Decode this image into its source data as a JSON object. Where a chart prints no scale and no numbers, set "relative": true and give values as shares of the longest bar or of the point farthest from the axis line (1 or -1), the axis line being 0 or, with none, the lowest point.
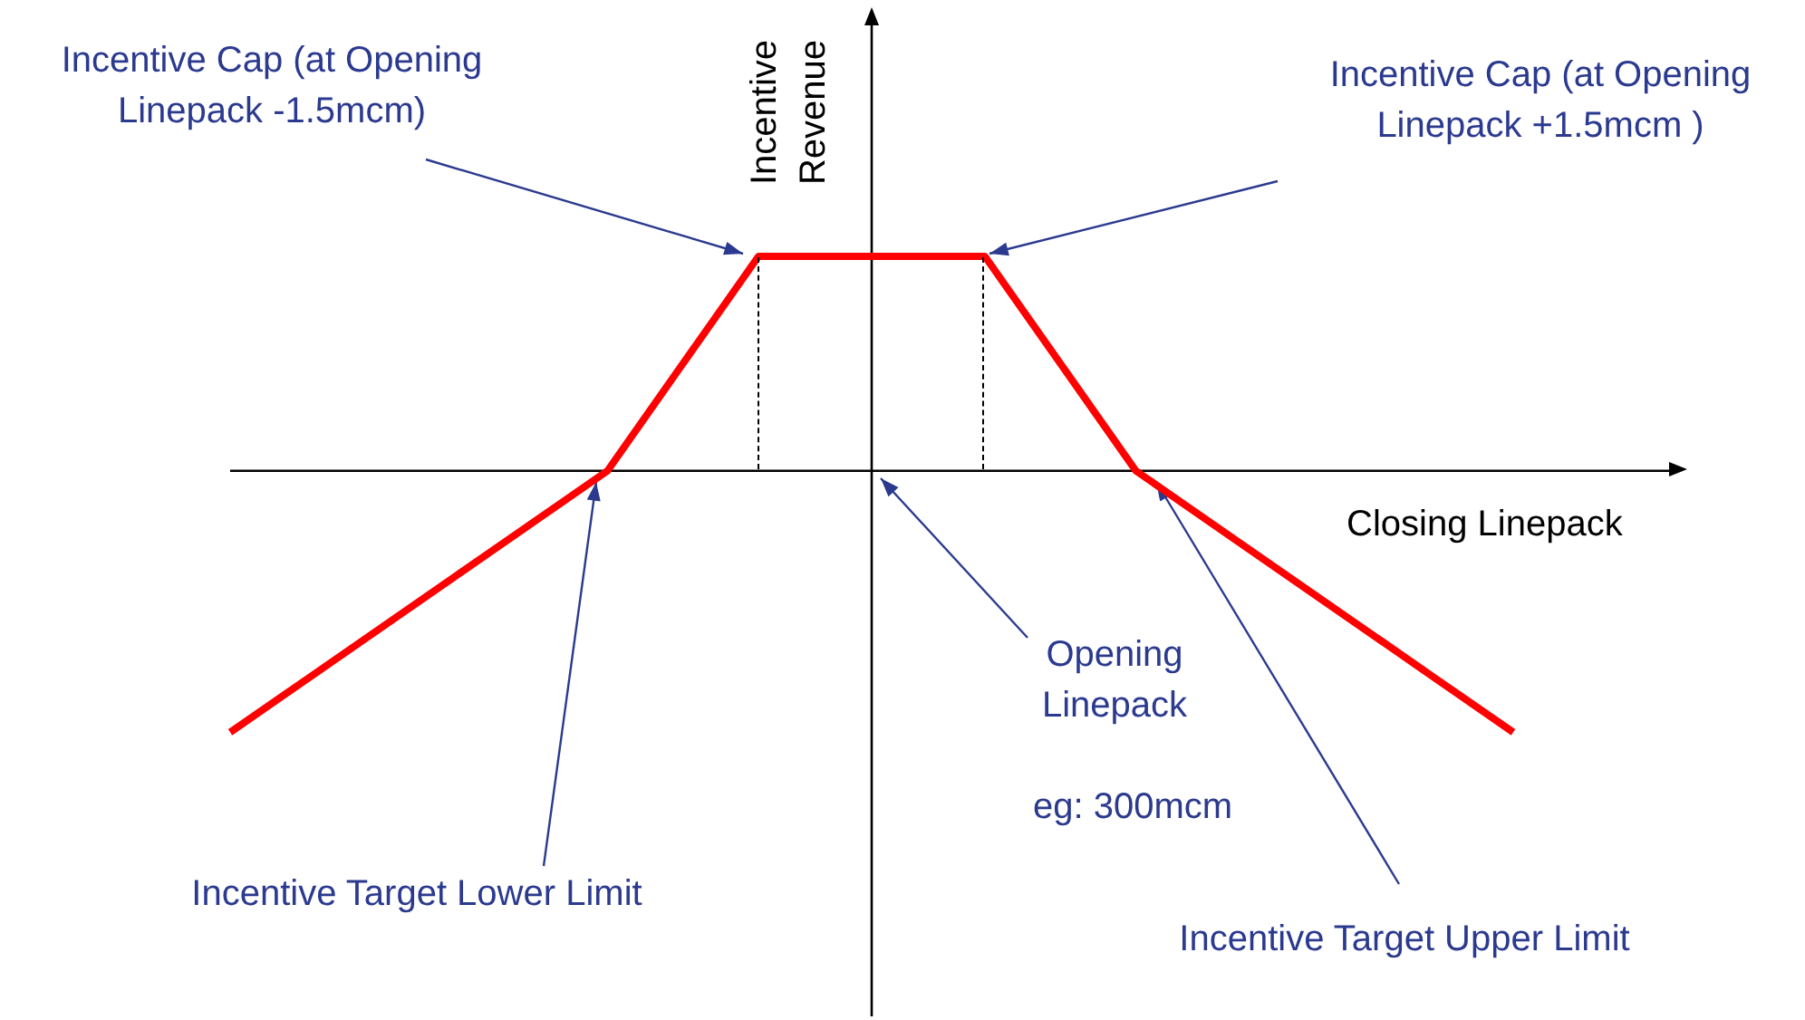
{
  "chart_data": {
    "type": "line",
    "relative": true,
    "xlabel": "Closing Linepack",
    "ylabel": "Incentive Revenue",
    "categories": [
      null,
      null,
      null,
      null,
      null,
      null,
      null,
      null,
      null,
      null,
      null,
      null,
      null,
      null,
      null,
      null,
      null,
      null
    ],
    "series": [
      {
        "color": "#ff0000",
        "values": [
          -1,
          -0.8,
          -0.6,
          -0.4,
          -0.2,
          0,
          0.41,
          0.82,
          0.82,
          0.82,
          0.82,
          0.41,
          0,
          -0.2,
          -0.4,
          -0.6,
          -0.8,
          -1
        ]
      }
    ],
    "marker": "none",
    "line_style": "solid",
    "legend": false,
    "annotations": [
      "Incentive Cap (at Opening Linepack -1.5mcm)",
      "Incentive Cap (at Opening Linepack +1.5mcm )",
      "Opening Linepack",
      "eg: 300mcm",
      "Incentive Target Lower Limit",
      "Incentive Target Upper Limit"
    ]
  }
}
